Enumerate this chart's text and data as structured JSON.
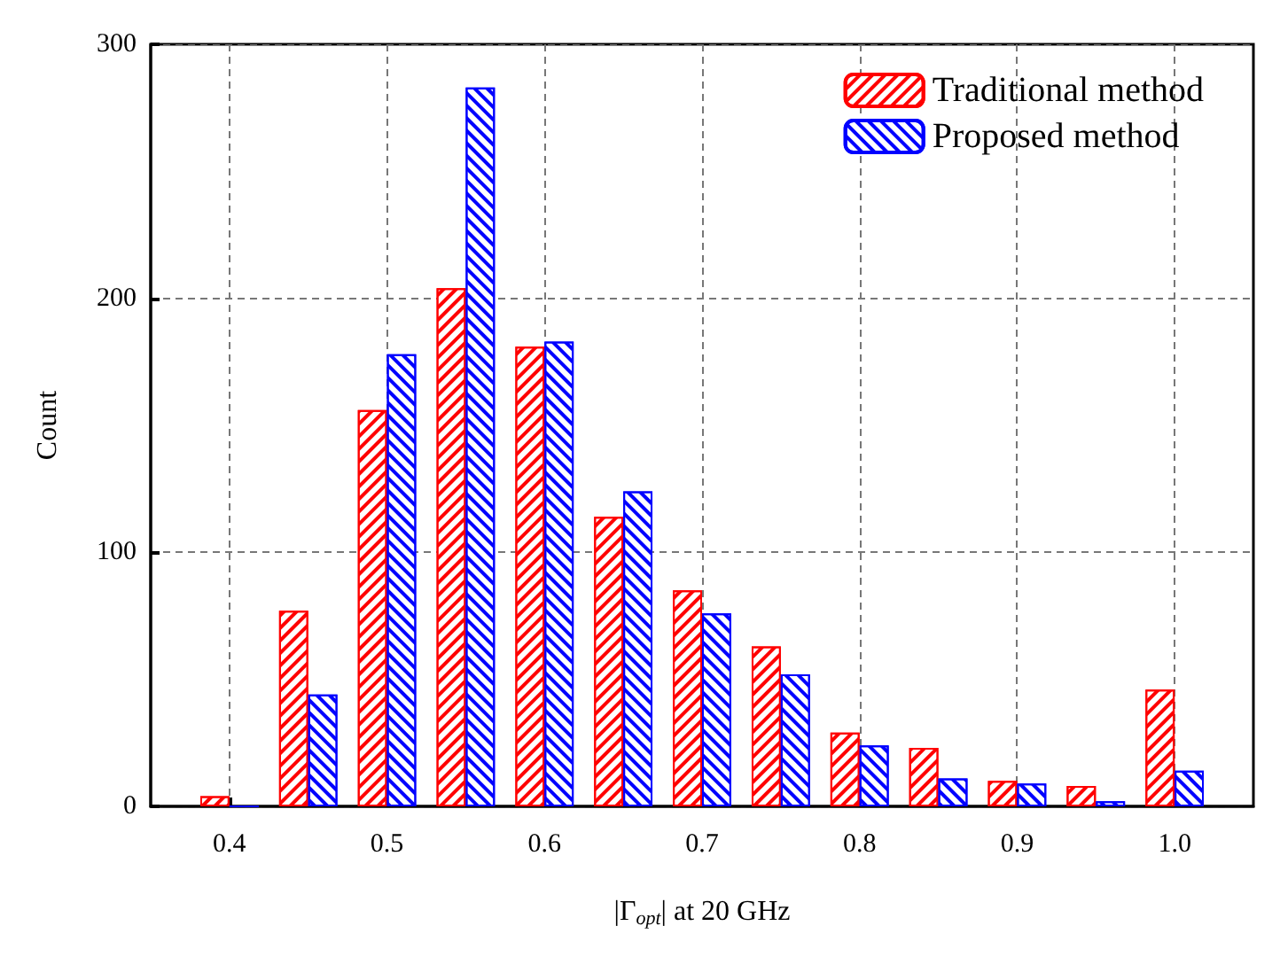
{
  "chart_data": {
    "type": "bar",
    "xlabel": "|Γ$_{opt}$| at 20 GHz",
    "ylabel": "Count",
    "x": [
      0.4,
      0.45,
      0.5,
      0.55,
      0.6,
      0.65,
      0.7,
      0.75,
      0.8,
      0.85,
      0.9,
      0.95,
      1.0
    ],
    "series": [
      {
        "name": "Traditional method",
        "color": "#ff0000",
        "values": [
          4,
          77,
          156,
          204,
          181,
          114,
          85,
          63,
          29,
          23,
          10,
          8,
          46
        ]
      },
      {
        "name": "Proposed method",
        "color": "#0000ff",
        "values": [
          0,
          44,
          178,
          283,
          183,
          124,
          76,
          52,
          24,
          11,
          9,
          2,
          14
        ]
      }
    ],
    "xlim": [
      0.35,
      1.05
    ],
    "xticks": [
      0.4,
      0.5,
      0.6,
      0.7,
      0.8,
      0.9,
      {
        "value": 1,
        "label": "1.0"
      }
    ],
    "ylim": [
      0,
      300
    ],
    "yticks": [
      0,
      100,
      200,
      300
    ],
    "grid": true,
    "legend": "top right"
  }
}
